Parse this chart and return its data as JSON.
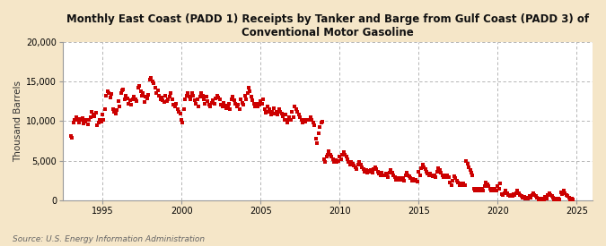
{
  "title": "Monthly East Coast (PADD 1) Receipts by Tanker and Barge from Gulf Coast (PADD 3) of\nConventional Motor Gasoline",
  "ylabel": "Thousand Barrels",
  "source": "Source: U.S. Energy Information Administration",
  "dot_color": "#cc0000",
  "background_color": "#f5e6c8",
  "plot_bg_color": "#ffffff",
  "grid_color": "#aaaaaa",
  "ylim": [
    0,
    20000
  ],
  "yticks": [
    0,
    5000,
    10000,
    15000,
    20000
  ],
  "ytick_labels": [
    "0",
    "5,000",
    "10,000",
    "15,000",
    "20,000"
  ],
  "xticks": [
    1995,
    2000,
    2005,
    2010,
    2015,
    2020,
    2025
  ],
  "xlim": [
    1992.5,
    2026.0
  ],
  "monthly_data": [
    [
      1993.0,
      8100
    ],
    [
      1993.08,
      7900
    ],
    [
      1993.17,
      9800
    ],
    [
      1993.25,
      10200
    ],
    [
      1993.33,
      10500
    ],
    [
      1993.42,
      10100
    ],
    [
      1993.5,
      9800
    ],
    [
      1993.58,
      10300
    ],
    [
      1993.67,
      10100
    ],
    [
      1993.75,
      10400
    ],
    [
      1993.83,
      9700
    ],
    [
      1993.92,
      9900
    ],
    [
      1994.0,
      10200
    ],
    [
      1994.08,
      9600
    ],
    [
      1994.17,
      10100
    ],
    [
      1994.25,
      10500
    ],
    [
      1994.33,
      11200
    ],
    [
      1994.42,
      10800
    ],
    [
      1994.5,
      10600
    ],
    [
      1994.58,
      11100
    ],
    [
      1994.67,
      9500
    ],
    [
      1994.75,
      9800
    ],
    [
      1994.83,
      10200
    ],
    [
      1994.92,
      9900
    ],
    [
      1995.0,
      10800
    ],
    [
      1995.08,
      10200
    ],
    [
      1995.17,
      11500
    ],
    [
      1995.25,
      13200
    ],
    [
      1995.33,
      13800
    ],
    [
      1995.42,
      13500
    ],
    [
      1995.5,
      13000
    ],
    [
      1995.58,
      13400
    ],
    [
      1995.67,
      11500
    ],
    [
      1995.75,
      11200
    ],
    [
      1995.83,
      11000
    ],
    [
      1995.92,
      11400
    ],
    [
      1996.0,
      12500
    ],
    [
      1996.08,
      11800
    ],
    [
      1996.17,
      13500
    ],
    [
      1996.25,
      13900
    ],
    [
      1996.33,
      14000
    ],
    [
      1996.42,
      12800
    ],
    [
      1996.5,
      13200
    ],
    [
      1996.58,
      12900
    ],
    [
      1996.67,
      12200
    ],
    [
      1996.75,
      12600
    ],
    [
      1996.83,
      12100
    ],
    [
      1996.92,
      12800
    ],
    [
      1997.0,
      13100
    ],
    [
      1997.08,
      12800
    ],
    [
      1997.17,
      12500
    ],
    [
      1997.25,
      14200
    ],
    [
      1997.33,
      14500
    ],
    [
      1997.42,
      13800
    ],
    [
      1997.5,
      13200
    ],
    [
      1997.58,
      13600
    ],
    [
      1997.67,
      12400
    ],
    [
      1997.75,
      13100
    ],
    [
      1997.83,
      12900
    ],
    [
      1997.92,
      13300
    ],
    [
      1998.0,
      15200
    ],
    [
      1998.08,
      15500
    ],
    [
      1998.17,
      15000
    ],
    [
      1998.25,
      14800
    ],
    [
      1998.33,
      14200
    ],
    [
      1998.42,
      13600
    ],
    [
      1998.5,
      13900
    ],
    [
      1998.58,
      13200
    ],
    [
      1998.67,
      12800
    ],
    [
      1998.75,
      13000
    ],
    [
      1998.83,
      12600
    ],
    [
      1998.92,
      12400
    ],
    [
      1999.0,
      13200
    ],
    [
      1999.08,
      12500
    ],
    [
      1999.17,
      12800
    ],
    [
      1999.25,
      13100
    ],
    [
      1999.33,
      13500
    ],
    [
      1999.42,
      12800
    ],
    [
      1999.5,
      12100
    ],
    [
      1999.58,
      11800
    ],
    [
      1999.67,
      12200
    ],
    [
      1999.75,
      11500
    ],
    [
      1999.83,
      11200
    ],
    [
      1999.92,
      11000
    ],
    [
      2000.0,
      10200
    ],
    [
      2000.08,
      9800
    ],
    [
      2000.17,
      11500
    ],
    [
      2000.25,
      12800
    ],
    [
      2000.33,
      13200
    ],
    [
      2000.42,
      13600
    ],
    [
      2000.5,
      13100
    ],
    [
      2000.58,
      12800
    ],
    [
      2000.67,
      13500
    ],
    [
      2000.75,
      13200
    ],
    [
      2000.83,
      12600
    ],
    [
      2000.92,
      12200
    ],
    [
      2001.0,
      12800
    ],
    [
      2001.08,
      11900
    ],
    [
      2001.17,
      13100
    ],
    [
      2001.25,
      13600
    ],
    [
      2001.33,
      13200
    ],
    [
      2001.42,
      12800
    ],
    [
      2001.5,
      12200
    ],
    [
      2001.58,
      13100
    ],
    [
      2001.67,
      12500
    ],
    [
      2001.75,
      12100
    ],
    [
      2001.83,
      11800
    ],
    [
      2001.92,
      12300
    ],
    [
      2002.0,
      12600
    ],
    [
      2002.08,
      12200
    ],
    [
      2002.17,
      12900
    ],
    [
      2002.25,
      13200
    ],
    [
      2002.33,
      13000
    ],
    [
      2002.42,
      12800
    ],
    [
      2002.5,
      12100
    ],
    [
      2002.58,
      11800
    ],
    [
      2002.67,
      12300
    ],
    [
      2002.75,
      12000
    ],
    [
      2002.83,
      11600
    ],
    [
      2002.92,
      11900
    ],
    [
      2003.0,
      12200
    ],
    [
      2003.08,
      11500
    ],
    [
      2003.17,
      12800
    ],
    [
      2003.25,
      13100
    ],
    [
      2003.33,
      12600
    ],
    [
      2003.42,
      12200
    ],
    [
      2003.5,
      11800
    ],
    [
      2003.58,
      12100
    ],
    [
      2003.67,
      11500
    ],
    [
      2003.75,
      12800
    ],
    [
      2003.83,
      12300
    ],
    [
      2003.92,
      12100
    ],
    [
      2004.0,
      13200
    ],
    [
      2004.08,
      12800
    ],
    [
      2004.17,
      13600
    ],
    [
      2004.25,
      14200
    ],
    [
      2004.33,
      13800
    ],
    [
      2004.42,
      13100
    ],
    [
      2004.5,
      12600
    ],
    [
      2004.58,
      12200
    ],
    [
      2004.67,
      11800
    ],
    [
      2004.75,
      12200
    ],
    [
      2004.83,
      11900
    ],
    [
      2004.92,
      12100
    ],
    [
      2005.0,
      12500
    ],
    [
      2005.08,
      12200
    ],
    [
      2005.17,
      12800
    ],
    [
      2005.25,
      11500
    ],
    [
      2005.33,
      11100
    ],
    [
      2005.42,
      11800
    ],
    [
      2005.5,
      11200
    ],
    [
      2005.58,
      11500
    ],
    [
      2005.67,
      10800
    ],
    [
      2005.75,
      11200
    ],
    [
      2005.83,
      11600
    ],
    [
      2005.92,
      11000
    ],
    [
      2006.0,
      11200
    ],
    [
      2006.08,
      10800
    ],
    [
      2006.17,
      11500
    ],
    [
      2006.25,
      11200
    ],
    [
      2006.33,
      11000
    ],
    [
      2006.42,
      10600
    ],
    [
      2006.5,
      10200
    ],
    [
      2006.58,
      10800
    ],
    [
      2006.67,
      9800
    ],
    [
      2006.75,
      10200
    ],
    [
      2006.83,
      10500
    ],
    [
      2006.92,
      10100
    ],
    [
      2007.0,
      11200
    ],
    [
      2007.08,
      10500
    ],
    [
      2007.17,
      11800
    ],
    [
      2007.25,
      11500
    ],
    [
      2007.33,
      11200
    ],
    [
      2007.42,
      10800
    ],
    [
      2007.5,
      10500
    ],
    [
      2007.58,
      10200
    ],
    [
      2007.67,
      9800
    ],
    [
      2007.75,
      10100
    ],
    [
      2007.83,
      9900
    ],
    [
      2007.92,
      10200
    ],
    [
      2008.0,
      10200
    ],
    [
      2008.08,
      10100
    ],
    [
      2008.17,
      10500
    ],
    [
      2008.25,
      10200
    ],
    [
      2008.33,
      9800
    ],
    [
      2008.42,
      9500
    ],
    [
      2008.5,
      7800
    ],
    [
      2008.58,
      7200
    ],
    [
      2008.67,
      8500
    ],
    [
      2008.75,
      9200
    ],
    [
      2008.83,
      9800
    ],
    [
      2008.92,
      9900
    ],
    [
      2009.0,
      5200
    ],
    [
      2009.08,
      4800
    ],
    [
      2009.17,
      5500
    ],
    [
      2009.25,
      5800
    ],
    [
      2009.33,
      6200
    ],
    [
      2009.42,
      5800
    ],
    [
      2009.5,
      5500
    ],
    [
      2009.58,
      5200
    ],
    [
      2009.67,
      4800
    ],
    [
      2009.75,
      5100
    ],
    [
      2009.83,
      4800
    ],
    [
      2009.92,
      5000
    ],
    [
      2010.0,
      5500
    ],
    [
      2010.08,
      5200
    ],
    [
      2010.17,
      5800
    ],
    [
      2010.25,
      6100
    ],
    [
      2010.33,
      5800
    ],
    [
      2010.42,
      5500
    ],
    [
      2010.5,
      5200
    ],
    [
      2010.58,
      4800
    ],
    [
      2010.67,
      4500
    ],
    [
      2010.75,
      4800
    ],
    [
      2010.83,
      4600
    ],
    [
      2010.92,
      4400
    ],
    [
      2011.0,
      4200
    ],
    [
      2011.08,
      3900
    ],
    [
      2011.17,
      4500
    ],
    [
      2011.25,
      4800
    ],
    [
      2011.33,
      4500
    ],
    [
      2011.42,
      4200
    ],
    [
      2011.5,
      3900
    ],
    [
      2011.58,
      3600
    ],
    [
      2011.67,
      3800
    ],
    [
      2011.75,
      3500
    ],
    [
      2011.83,
      3700
    ],
    [
      2011.92,
      3600
    ],
    [
      2012.0,
      3800
    ],
    [
      2012.08,
      3500
    ],
    [
      2012.17,
      3900
    ],
    [
      2012.25,
      4200
    ],
    [
      2012.33,
      3900
    ],
    [
      2012.42,
      3600
    ],
    [
      2012.5,
      3400
    ],
    [
      2012.58,
      3200
    ],
    [
      2012.67,
      3500
    ],
    [
      2012.75,
      3200
    ],
    [
      2012.83,
      3100
    ],
    [
      2012.92,
      3400
    ],
    [
      2013.0,
      3200
    ],
    [
      2013.08,
      2900
    ],
    [
      2013.17,
      3500
    ],
    [
      2013.25,
      3800
    ],
    [
      2013.33,
      3500
    ],
    [
      2013.42,
      3200
    ],
    [
      2013.5,
      2900
    ],
    [
      2013.58,
      2600
    ],
    [
      2013.67,
      2800
    ],
    [
      2013.75,
      2600
    ],
    [
      2013.83,
      2800
    ],
    [
      2013.92,
      2600
    ],
    [
      2014.0,
      2800
    ],
    [
      2014.08,
      2500
    ],
    [
      2014.17,
      3100
    ],
    [
      2014.25,
      3500
    ],
    [
      2014.33,
      3200
    ],
    [
      2014.42,
      3000
    ],
    [
      2014.5,
      2800
    ],
    [
      2014.58,
      2500
    ],
    [
      2014.67,
      2700
    ],
    [
      2014.75,
      2500
    ],
    [
      2014.83,
      2600
    ],
    [
      2014.92,
      2400
    ],
    [
      2015.0,
      3600
    ],
    [
      2015.08,
      3200
    ],
    [
      2015.17,
      4000
    ],
    [
      2015.25,
      4500
    ],
    [
      2015.33,
      4200
    ],
    [
      2015.42,
      3900
    ],
    [
      2015.5,
      3600
    ],
    [
      2015.58,
      3400
    ],
    [
      2015.67,
      3100
    ],
    [
      2015.75,
      3400
    ],
    [
      2015.83,
      3200
    ],
    [
      2015.92,
      3000
    ],
    [
      2016.0,
      3200
    ],
    [
      2016.08,
      2900
    ],
    [
      2016.17,
      3600
    ],
    [
      2016.25,
      4000
    ],
    [
      2016.33,
      3800
    ],
    [
      2016.42,
      3500
    ],
    [
      2016.5,
      3200
    ],
    [
      2016.58,
      2900
    ],
    [
      2016.67,
      3100
    ],
    [
      2016.75,
      2900
    ],
    [
      2016.83,
      3100
    ],
    [
      2016.92,
      2900
    ],
    [
      2017.0,
      2200
    ],
    [
      2017.08,
      1900
    ],
    [
      2017.17,
      2500
    ],
    [
      2017.25,
      3000
    ],
    [
      2017.33,
      2800
    ],
    [
      2017.42,
      2500
    ],
    [
      2017.5,
      2200
    ],
    [
      2017.58,
      1900
    ],
    [
      2017.67,
      2100
    ],
    [
      2017.75,
      1900
    ],
    [
      2017.83,
      2100
    ],
    [
      2017.92,
      1900
    ],
    [
      2018.0,
      5000
    ],
    [
      2018.08,
      4600
    ],
    [
      2018.17,
      4200
    ],
    [
      2018.25,
      3800
    ],
    [
      2018.33,
      3500
    ],
    [
      2018.42,
      3200
    ],
    [
      2018.5,
      1500
    ],
    [
      2018.58,
      1200
    ],
    [
      2018.67,
      1400
    ],
    [
      2018.75,
      1200
    ],
    [
      2018.83,
      1400
    ],
    [
      2018.92,
      1200
    ],
    [
      2019.0,
      1500
    ],
    [
      2019.08,
      1200
    ],
    [
      2019.17,
      1800
    ],
    [
      2019.25,
      2200
    ],
    [
      2019.33,
      2000
    ],
    [
      2019.42,
      1800
    ],
    [
      2019.5,
      1500
    ],
    [
      2019.58,
      1200
    ],
    [
      2019.67,
      1400
    ],
    [
      2019.75,
      1200
    ],
    [
      2019.83,
      1400
    ],
    [
      2019.92,
      1200
    ],
    [
      2020.0,
      1800
    ],
    [
      2020.08,
      1500
    ],
    [
      2020.17,
      2100
    ],
    [
      2020.25,
      800
    ],
    [
      2020.33,
      600
    ],
    [
      2020.42,
      900
    ],
    [
      2020.5,
      1200
    ],
    [
      2020.58,
      900
    ],
    [
      2020.67,
      700
    ],
    [
      2020.75,
      500
    ],
    [
      2020.83,
      700
    ],
    [
      2020.92,
      500
    ],
    [
      2021.0,
      800
    ],
    [
      2021.08,
      600
    ],
    [
      2021.17,
      900
    ],
    [
      2021.25,
      1200
    ],
    [
      2021.33,
      900
    ],
    [
      2021.42,
      700
    ],
    [
      2021.5,
      500
    ],
    [
      2021.58,
      300
    ],
    [
      2021.67,
      400
    ],
    [
      2021.75,
      200
    ],
    [
      2021.83,
      300
    ],
    [
      2021.92,
      200
    ],
    [
      2022.0,
      500
    ],
    [
      2022.08,
      300
    ],
    [
      2022.17,
      600
    ],
    [
      2022.25,
      900
    ],
    [
      2022.33,
      700
    ],
    [
      2022.42,
      500
    ],
    [
      2022.5,
      300
    ],
    [
      2022.58,
      100
    ],
    [
      2022.67,
      200
    ],
    [
      2022.75,
      100
    ],
    [
      2022.83,
      200
    ],
    [
      2022.92,
      100
    ],
    [
      2023.0,
      400
    ],
    [
      2023.08,
      200
    ],
    [
      2023.17,
      600
    ],
    [
      2023.25,
      900
    ],
    [
      2023.33,
      700
    ],
    [
      2023.42,
      500
    ],
    [
      2023.5,
      300
    ],
    [
      2023.58,
      100
    ],
    [
      2023.67,
      200
    ],
    [
      2023.75,
      100
    ],
    [
      2023.83,
      200
    ],
    [
      2023.92,
      100
    ],
    [
      2024.0,
      1000
    ],
    [
      2024.08,
      800
    ],
    [
      2024.17,
      1200
    ],
    [
      2024.25,
      900
    ],
    [
      2024.33,
      700
    ],
    [
      2024.42,
      500
    ],
    [
      2024.5,
      300
    ],
    [
      2024.58,
      100
    ],
    [
      2024.67,
      200
    ],
    [
      2024.75,
      100
    ]
  ]
}
